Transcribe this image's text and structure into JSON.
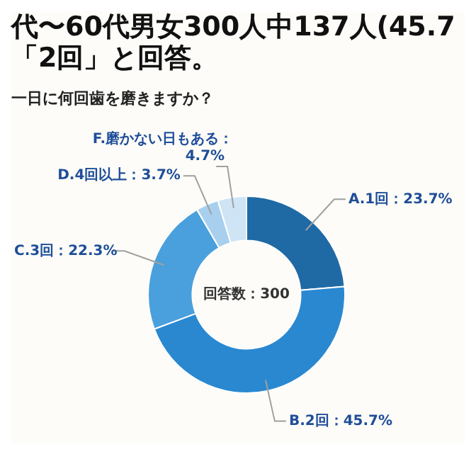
{
  "chart_data": {
    "type": "donut",
    "title": "代〜60代男女300人中137人(45.7\n「2回」と回答。",
    "subtitle": "一日に何回歯を磨きますか？",
    "categories": [
      "A.1回",
      "B.2回",
      "C.3回",
      "D.4回以上",
      "F.磨かない日もある"
    ],
    "values": [
      23.7,
      45.7,
      22.3,
      3.7,
      4.7
    ],
    "colors": [
      "#1f6aa5",
      "#2a88d0",
      "#4aa0dc",
      "#a8d0ee",
      "#cfe4f5"
    ],
    "value_labels": [
      "：23.7%",
      "：45.7%",
      "：22.3%",
      "：3.7%",
      "：4.7%"
    ],
    "legend": false,
    "annotations": [
      "回答数：300"
    ]
  }
}
